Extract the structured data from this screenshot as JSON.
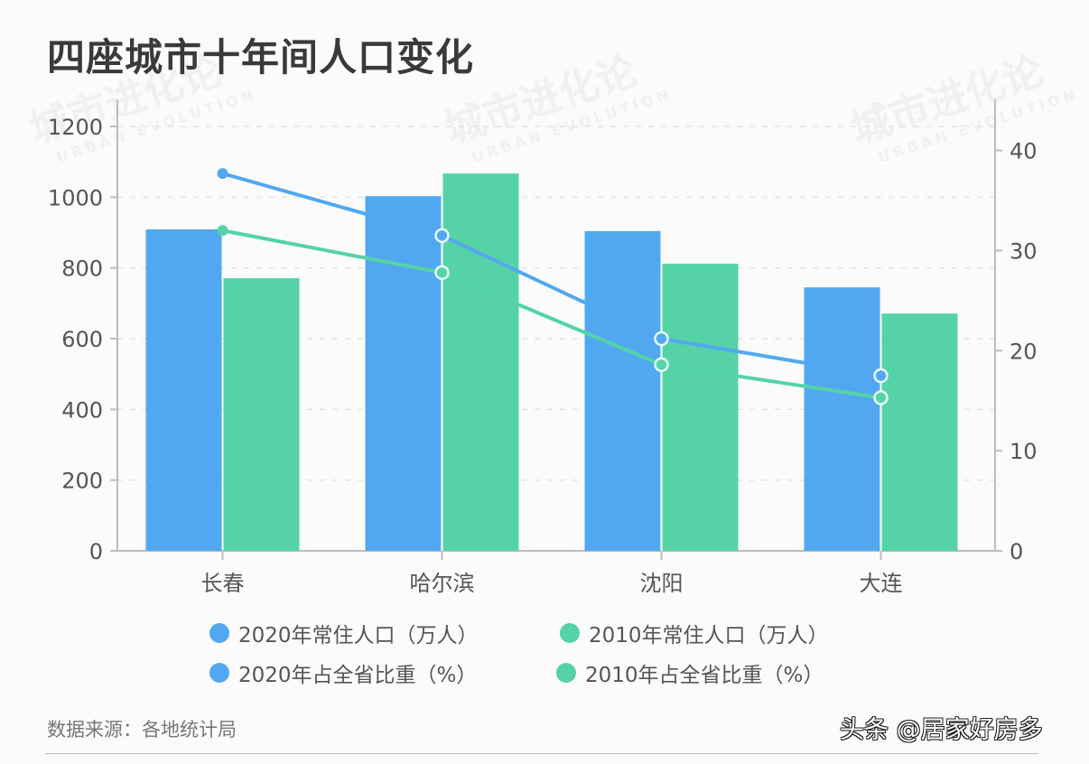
{
  "title": "四座城市十年间人口变化",
  "source": "数据来源：各地统计局",
  "credit": "头条 @居家好房多",
  "watermark": {
    "text": "城市进化论",
    "subtext": "URBAN EVOLUTION"
  },
  "colors": {
    "blue": "#52a8f0",
    "green": "#55d3a6",
    "axis": "#bdbdbd",
    "grid": "#dddddd",
    "text": "#555555"
  },
  "legend": [
    {
      "label": "2020年常住人口（万人）",
      "color": "#52a8f0"
    },
    {
      "label": "2010年常住人口（万人）",
      "color": "#55d3a6"
    },
    {
      "label": "2020年占全省比重（%）",
      "color": "#52a8f0"
    },
    {
      "label": "2010年占全省比重（%）",
      "color": "#55d3a6"
    }
  ],
  "chart_data": {
    "type": "bar+line",
    "title": "四座城市十年间人口变化",
    "categories": [
      "长春",
      "哈尔滨",
      "沈阳",
      "大连"
    ],
    "series": [
      {
        "name": "2020年常住人口（万人）",
        "type": "bar",
        "axis": "left",
        "color": "#52a8f0",
        "values": [
          909,
          1003,
          904,
          745
        ]
      },
      {
        "name": "2010年常住人口（万人）",
        "type": "bar",
        "axis": "left",
        "color": "#55d3a6",
        "values": [
          771,
          1067,
          812,
          671
        ]
      },
      {
        "name": "2020年占全省比重（%）",
        "type": "line",
        "axis": "right",
        "color": "#52a8f0",
        "values": [
          37.7,
          31.5,
          21.2,
          17.5
        ]
      },
      {
        "name": "2010年占全省比重（%）",
        "type": "line",
        "axis": "right",
        "color": "#55d3a6",
        "values": [
          32.0,
          27.8,
          18.6,
          15.3
        ]
      }
    ],
    "left_axis": {
      "ylim": [
        0,
        1200
      ],
      "ticks": [
        0,
        200,
        400,
        600,
        800,
        1000,
        1200
      ]
    },
    "right_axis": {
      "ylim": [
        0,
        42.4
      ],
      "ticks": [
        0,
        10,
        20,
        30,
        40
      ]
    },
    "xlabel": "",
    "ylabel": "",
    "grid": true,
    "legend_position": "bottom"
  }
}
